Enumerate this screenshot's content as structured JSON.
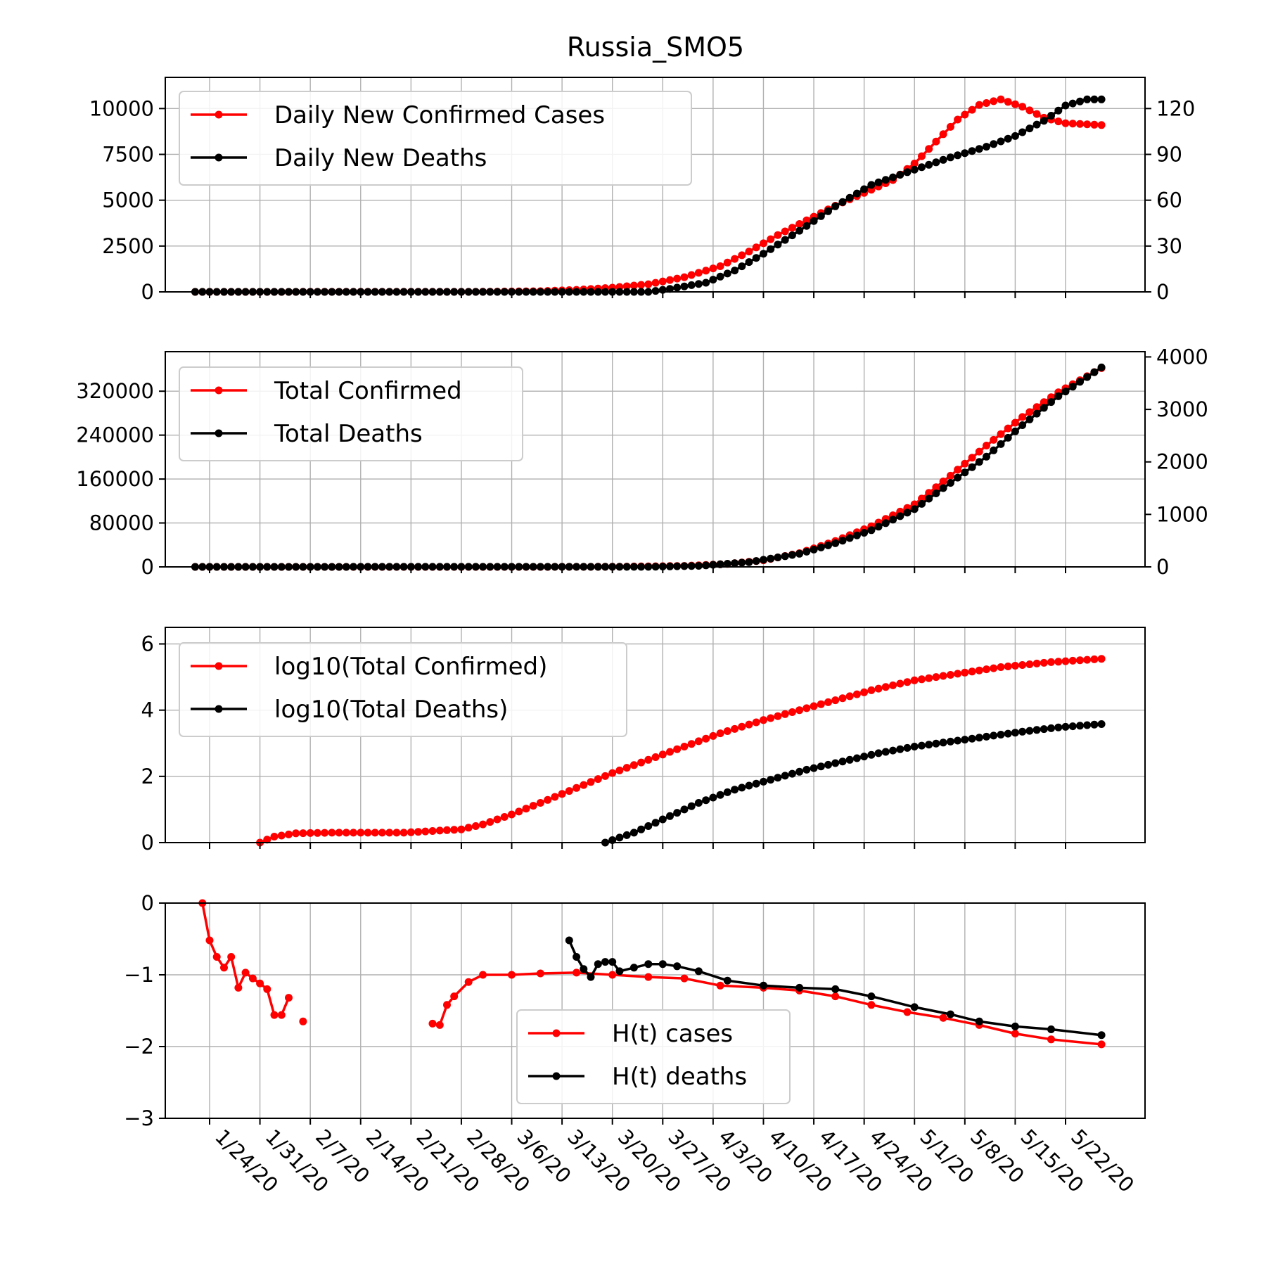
{
  "chart_data": [
    {
      "id": "daily",
      "type": "line",
      "title": "Russia_SMO5",
      "x_axis": {
        "start_date": "1/22/20",
        "end_date": "5/27/20",
        "tick_labels": [
          "1/24/20",
          "1/31/20",
          "2/7/20",
          "2/14/20",
          "2/21/20",
          "2/28/20",
          "3/6/20",
          "3/13/20",
          "3/20/20",
          "3/27/20",
          "4/3/20",
          "4/10/20",
          "4/17/20",
          "4/24/20",
          "5/1/20",
          "5/8/20",
          "5/15/20",
          "5/22/20"
        ]
      },
      "y_left": {
        "ylim": [
          0,
          11700
        ],
        "ticks": [
          0,
          2500,
          5000,
          7500,
          10000
        ],
        "tick_labels": [
          "0",
          "2500",
          "5000",
          "7500",
          "10000"
        ]
      },
      "y_right": {
        "ylim": [
          0,
          140.4
        ],
        "ticks": [
          0,
          30,
          60,
          90,
          120
        ],
        "tick_labels": [
          "0",
          "30",
          "60",
          "90",
          "120"
        ]
      },
      "grid": true,
      "legend_placement": "upper-left",
      "series": [
        {
          "name": "Daily New Confirmed Cases",
          "color": "#ff0000",
          "axis": "left",
          "points": [
            [
              "1/22/20",
              0
            ],
            [
              "3/1/20",
              5
            ],
            [
              "3/10/20",
              40
            ],
            [
              "3/15/20",
              110
            ],
            [
              "3/20/20",
              230
            ],
            [
              "3/25/20",
              420
            ],
            [
              "3/30/20",
              800
            ],
            [
              "4/4/20",
              1400
            ],
            [
              "4/8/20",
              2200
            ],
            [
              "4/12/20",
              3100
            ],
            [
              "4/16/20",
              3900
            ],
            [
              "4/20/20",
              4700
            ],
            [
              "4/24/20",
              5400
            ],
            [
              "4/28/20",
              6100
            ],
            [
              "5/1/20",
              7000
            ],
            [
              "5/4/20",
              8200
            ],
            [
              "5/7/20",
              9400
            ],
            [
              "5/10/20",
              10200
            ],
            [
              "5/13/20",
              10500
            ],
            [
              "5/16/20",
              10100
            ],
            [
              "5/19/20",
              9500
            ],
            [
              "5/22/20",
              9200
            ],
            [
              "5/27/20",
              9100
            ]
          ]
        },
        {
          "name": "Daily New Deaths",
          "color": "#000000",
          "axis": "right",
          "points": [
            [
              "1/22/20",
              0
            ],
            [
              "3/25/20",
              0
            ],
            [
              "3/28/20",
              2
            ],
            [
              "4/2/20",
              6
            ],
            [
              "4/6/20",
              14
            ],
            [
              "4/10/20",
              25
            ],
            [
              "4/15/20",
              40
            ],
            [
              "4/20/20",
              56
            ],
            [
              "4/25/20",
              70
            ],
            [
              "5/1/20",
              80
            ],
            [
              "5/6/20",
              88
            ],
            [
              "5/11/20",
              95
            ],
            [
              "5/15/20",
              102
            ],
            [
              "5/19/20",
              112
            ],
            [
              "5/22/20",
              122
            ],
            [
              "5/25/20",
              126
            ],
            [
              "5/27/20",
              126
            ]
          ]
        }
      ]
    },
    {
      "id": "total",
      "type": "line",
      "x_axis": {
        "start_date": "1/22/20",
        "end_date": "5/27/20"
      },
      "y_left": {
        "ylim": [
          0,
          392000
        ],
        "ticks": [
          0,
          80000,
          160000,
          240000,
          320000
        ],
        "tick_labels": [
          "0",
          "80000",
          "160000",
          "240000",
          "320000"
        ]
      },
      "y_right": {
        "ylim": [
          0,
          4100
        ],
        "ticks": [
          0,
          1000,
          2000,
          3000,
          4000
        ],
        "tick_labels": [
          "0",
          "1000",
          "2000",
          "3000",
          "4000"
        ]
      },
      "grid": true,
      "legend_placement": "upper-left",
      "series": [
        {
          "name": "Total Confirmed",
          "color": "#ff0000",
          "axis": "left",
          "points": [
            [
              "1/22/20",
              0
            ],
            [
              "3/10/20",
              20
            ],
            [
              "3/20/20",
              250
            ],
            [
              "3/30/20",
              1800
            ],
            [
              "4/5/20",
              5400
            ],
            [
              "4/10/20",
              12000
            ],
            [
              "4/15/20",
              25000
            ],
            [
              "4/20/20",
              47000
            ],
            [
              "4/25/20",
              74000
            ],
            [
              "5/1/20",
              114000
            ],
            [
              "5/6/20",
              166000
            ],
            [
              "5/11/20",
              221000
            ],
            [
              "5/16/20",
              273000
            ],
            [
              "5/21/20",
              318000
            ],
            [
              "5/27/20",
              362000
            ]
          ]
        },
        {
          "name": "Total Deaths",
          "color": "#000000",
          "axis": "right",
          "points": [
            [
              "1/22/20",
              0
            ],
            [
              "3/25/20",
              2
            ],
            [
              "4/1/20",
              20
            ],
            [
              "4/8/20",
              90
            ],
            [
              "4/15/20",
              250
            ],
            [
              "4/20/20",
              450
            ],
            [
              "4/25/20",
              700
            ],
            [
              "5/1/20",
              1100
            ],
            [
              "5/6/20",
              1600
            ],
            [
              "5/11/20",
              2100
            ],
            [
              "5/16/20",
              2700
            ],
            [
              "5/21/20",
              3250
            ],
            [
              "5/27/20",
              3800
            ]
          ]
        }
      ]
    },
    {
      "id": "log",
      "type": "line",
      "x_axis": {
        "start_date": "1/22/20",
        "end_date": "5/27/20"
      },
      "y_left": {
        "ylim": [
          0,
          6.5
        ],
        "ticks": [
          0,
          2,
          4,
          6
        ],
        "tick_labels": [
          "0",
          "2",
          "4",
          "6"
        ]
      },
      "grid": true,
      "legend_placement": "upper-left",
      "series": [
        {
          "name": "log10(Total Confirmed)",
          "color": "#ff0000",
          "axis": "left",
          "points": [
            [
              "1/31/20",
              0
            ],
            [
              "2/2/20",
              0.18
            ],
            [
              "2/5/20",
              0.28
            ],
            [
              "2/10/20",
              0.3
            ],
            [
              "2/20/20",
              0.3
            ],
            [
              "2/28/20",
              0.4
            ],
            [
              "3/2/20",
              0.55
            ],
            [
              "3/6/20",
              0.85
            ],
            [
              "3/10/20",
              1.2
            ],
            [
              "3/15/20",
              1.65
            ],
            [
              "3/20/20",
              2.1
            ],
            [
              "3/25/20",
              2.5
            ],
            [
              "3/30/20",
              2.9
            ],
            [
              "4/4/20",
              3.3
            ],
            [
              "4/10/20",
              3.7
            ],
            [
              "4/15/20",
              4.0
            ],
            [
              "4/20/20",
              4.3
            ],
            [
              "4/25/20",
              4.6
            ],
            [
              "5/1/20",
              4.9
            ],
            [
              "5/7/20",
              5.1
            ],
            [
              "5/13/20",
              5.3
            ],
            [
              "5/20/20",
              5.45
            ],
            [
              "5/27/20",
              5.55
            ]
          ]
        },
        {
          "name": "log10(Total Deaths)",
          "color": "#000000",
          "axis": "left",
          "points": [
            [
              "3/19/20",
              0
            ],
            [
              "3/23/20",
              0.3
            ],
            [
              "3/27/20",
              0.7
            ],
            [
              "4/1/20",
              1.2
            ],
            [
              "4/6/20",
              1.6
            ],
            [
              "4/11/20",
              1.9
            ],
            [
              "4/16/20",
              2.2
            ],
            [
              "4/21/20",
              2.45
            ],
            [
              "4/26/20",
              2.7
            ],
            [
              "5/1/20",
              2.9
            ],
            [
              "5/6/20",
              3.05
            ],
            [
              "5/11/20",
              3.2
            ],
            [
              "5/16/20",
              3.35
            ],
            [
              "5/21/20",
              3.48
            ],
            [
              "5/27/20",
              3.58
            ]
          ]
        }
      ]
    },
    {
      "id": "hurst",
      "type": "line",
      "x_axis": {
        "start_date": "1/22/20",
        "end_date": "5/27/20"
      },
      "y_left": {
        "ylim": [
          -3,
          0
        ],
        "ticks": [
          -3,
          -2,
          -1,
          0
        ],
        "tick_labels": [
          "−3",
          "−2",
          "−1",
          "0"
        ]
      },
      "grid": true,
      "legend_placement": "lower-center",
      "series": [
        {
          "name": "H(t) cases",
          "color": "#ff0000",
          "axis": "left",
          "segments": [
            [
              [
                "1/23/20",
                0.0
              ],
              [
                "1/24/20",
                -0.52
              ],
              [
                "1/25/20",
                -0.75
              ],
              [
                "1/26/20",
                -0.9
              ],
              [
                "1/27/20",
                -0.75
              ],
              [
                "1/28/20",
                -1.18
              ],
              [
                "1/29/20",
                -0.97
              ],
              [
                "1/30/20",
                -1.05
              ],
              [
                "1/31/20",
                -1.12
              ],
              [
                "2/1/20",
                -1.2
              ],
              [
                "2/2/20",
                -1.56
              ],
              [
                "2/3/20",
                -1.56
              ],
              [
                "2/4/20",
                -1.32
              ]
            ],
            [
              [
                "2/6/20",
                -1.65
              ]
            ],
            [
              [
                "2/24/20",
                -1.68
              ],
              [
                "2/25/20",
                -1.7
              ],
              [
                "2/26/20",
                -1.42
              ],
              [
                "2/27/20",
                -1.3
              ],
              [
                "2/29/20",
                -1.1
              ],
              [
                "3/2/20",
                -1.0
              ],
              [
                "3/6/20",
                -1.0
              ],
              [
                "3/10/20",
                -0.98
              ],
              [
                "3/15/20",
                -0.97
              ],
              [
                "3/20/20",
                -1.0
              ],
              [
                "3/25/20",
                -1.03
              ],
              [
                "3/30/20",
                -1.05
              ],
              [
                "4/4/20",
                -1.15
              ],
              [
                "4/10/20",
                -1.18
              ],
              [
                "4/15/20",
                -1.22
              ],
              [
                "4/20/20",
                -1.3
              ],
              [
                "4/25/20",
                -1.42
              ],
              [
                "4/30/20",
                -1.52
              ],
              [
                "5/5/20",
                -1.6
              ],
              [
                "5/10/20",
                -1.7
              ],
              [
                "5/15/20",
                -1.82
              ],
              [
                "5/20/20",
                -1.9
              ],
              [
                "5/27/20",
                -1.97
              ]
            ]
          ]
        },
        {
          "name": "H(t) deaths",
          "color": "#000000",
          "axis": "left",
          "segments": [
            [
              [
                "3/14/20",
                -0.52
              ],
              [
                "3/15/20",
                -0.75
              ],
              [
                "3/16/20",
                -0.92
              ],
              [
                "3/17/20",
                -1.03
              ],
              [
                "3/18/20",
                -0.85
              ],
              [
                "3/19/20",
                -0.82
              ],
              [
                "3/20/20",
                -0.82
              ],
              [
                "3/21/20",
                -0.95
              ],
              [
                "3/23/20",
                -0.9
              ],
              [
                "3/25/20",
                -0.85
              ],
              [
                "3/27/20",
                -0.85
              ],
              [
                "3/29/20",
                -0.88
              ],
              [
                "4/1/20",
                -0.95
              ],
              [
                "4/5/20",
                -1.08
              ],
              [
                "4/10/20",
                -1.15
              ],
              [
                "4/15/20",
                -1.18
              ],
              [
                "4/20/20",
                -1.2
              ],
              [
                "4/25/20",
                -1.3
              ],
              [
                "5/1/20",
                -1.45
              ],
              [
                "5/6/20",
                -1.55
              ],
              [
                "5/10/20",
                -1.65
              ],
              [
                "5/15/20",
                -1.72
              ],
              [
                "5/20/20",
                -1.76
              ],
              [
                "5/27/20",
                -1.84
              ]
            ]
          ]
        }
      ]
    }
  ]
}
